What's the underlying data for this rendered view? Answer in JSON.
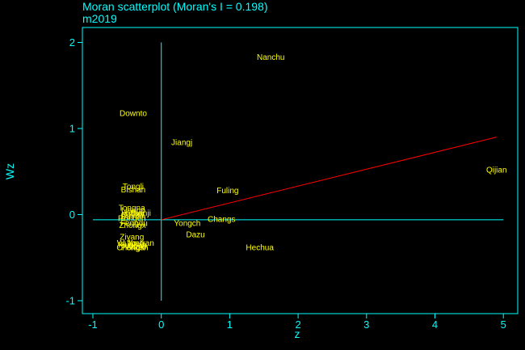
{
  "colors": {
    "background": "#000000",
    "axis": "#00ffff",
    "point_label": "#ffff00",
    "fit_line": "#ff0000"
  },
  "chart_data": {
    "type": "scatter",
    "title": "Moran scatterplot (Moran's I = 0.198)",
    "subtitle": "m2019",
    "xlabel": "z",
    "ylabel": "Wz",
    "xlim": [
      -1,
      5
    ],
    "ylim": [
      -1,
      2
    ],
    "xticks": [
      -1,
      0,
      1,
      2,
      3,
      4,
      5
    ],
    "yticks": [
      -1,
      0,
      1,
      2
    ],
    "grid": false,
    "points": [
      {
        "label": "Nanchu",
        "x": 1.6,
        "y": 1.83
      },
      {
        "label": "Downto",
        "x": -0.41,
        "y": 1.18
      },
      {
        "label": "Jiangj",
        "x": 0.3,
        "y": 0.84
      },
      {
        "label": "Qijian",
        "x": 4.9,
        "y": 0.52
      },
      {
        "label": "Tongli",
        "x": -0.41,
        "y": 0.33
      },
      {
        "label": "Bishan",
        "x": -0.41,
        "y": 0.29
      },
      {
        "label": "Fuling",
        "x": 0.97,
        "y": 0.28
      },
      {
        "label": "Tongna",
        "x": -0.43,
        "y": 0.08
      },
      {
        "label": "Liangp",
        "x": -0.41,
        "y": 0.05
      },
      {
        "label": "Yubei",
        "x": -0.4,
        "y": 0.02
      },
      {
        "label": "Beibei",
        "x": -0.42,
        "y": 0.0
      },
      {
        "label": "Ba'nan",
        "x": -0.41,
        "y": -0.02
      },
      {
        "label": "Rongch",
        "x": -0.43,
        "y": -0.04
      },
      {
        "label": "Dianji",
        "x": -0.3,
        "y": 0.02
      },
      {
        "label": "Yongch",
        "x": 0.38,
        "y": -0.1
      },
      {
        "label": "Changs",
        "x": 0.88,
        "y": -0.05
      },
      {
        "label": "Fengdu",
        "x": -0.4,
        "y": -0.1
      },
      {
        "label": "Zhongx",
        "x": -0.42,
        "y": -0.12
      },
      {
        "label": "Dazu",
        "x": 0.5,
        "y": -0.23
      },
      {
        "label": "Ziyang",
        "x": -0.43,
        "y": -0.26
      },
      {
        "label": "Hechua",
        "x": 1.44,
        "y": -0.38
      },
      {
        "label": "Wulong",
        "x": -0.45,
        "y": -0.33
      },
      {
        "label": "Youyan",
        "x": -0.3,
        "y": -0.33
      },
      {
        "label": "Xiushan",
        "x": -0.42,
        "y": -0.35
      },
      {
        "label": "Pengsh",
        "x": -0.39,
        "y": -0.38
      },
      {
        "label": "Chengk",
        "x": -0.45,
        "y": -0.38
      },
      {
        "label": "Wuxi",
        "x": -0.35,
        "y": -0.37
      }
    ],
    "fit_line": {
      "x": [
        0,
        4.9
      ],
      "y": [
        -0.06,
        0.9
      ]
    },
    "reference_lines": {
      "horizontal_y": -0.06,
      "vertical_x": 0
    }
  }
}
